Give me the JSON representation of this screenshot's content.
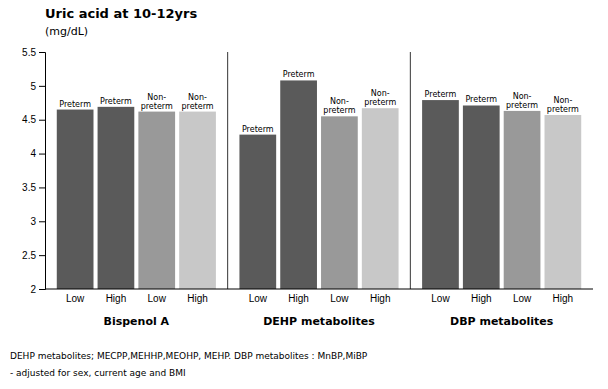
{
  "chart_data": {
    "type": "bar",
    "title": "Uric acid at 10-12yrs",
    "ylabel": "(mg/dL)",
    "categories": [
      "Low",
      "High",
      "Low",
      "High",
      "Low",
      "High",
      "Low",
      "High",
      "Low",
      "High",
      "Low",
      "High"
    ],
    "values": [
      4.65,
      4.69,
      4.62,
      4.62,
      4.28,
      5.08,
      4.55,
      4.67,
      4.79,
      4.71,
      4.63,
      4.57
    ],
    "colors": [
      "#5a5a5a",
      "#5a5a5a",
      "#999999",
      "#c8c8c8",
      "#5a5a5a",
      "#5a5a5a",
      "#999999",
      "#c8c8c8",
      "#5a5a5a",
      "#5a5a5a",
      "#999999",
      "#c8c8c8"
    ],
    "annotations": [
      "Preterm",
      "Preterm",
      "Non-\npreterm",
      "Non-\npreterm",
      "Preterm",
      "Preterm",
      "Non-\npreterm",
      "Non-\npreterm",
      "Preterm",
      "Preterm",
      "Non-\npreterm",
      "Non-\npreterm"
    ],
    "groups": [
      "Bispenol A",
      "DEHP metabolites",
      "DBP metabolites"
    ],
    "footnotes": [
      "DEHP metabolites; MECPP,MEHHP,MEOHP, MEHP. DBP metabolites : MnBP,MiBP",
      "- adjusted for sex, current age and BMI"
    ],
    "ylim": [
      2.0,
      5.5
    ],
    "yticks": [
      2.0,
      2.5,
      3.0,
      3.5,
      4.0,
      4.5,
      5.0,
      5.5
    ],
    "grid": false
  }
}
